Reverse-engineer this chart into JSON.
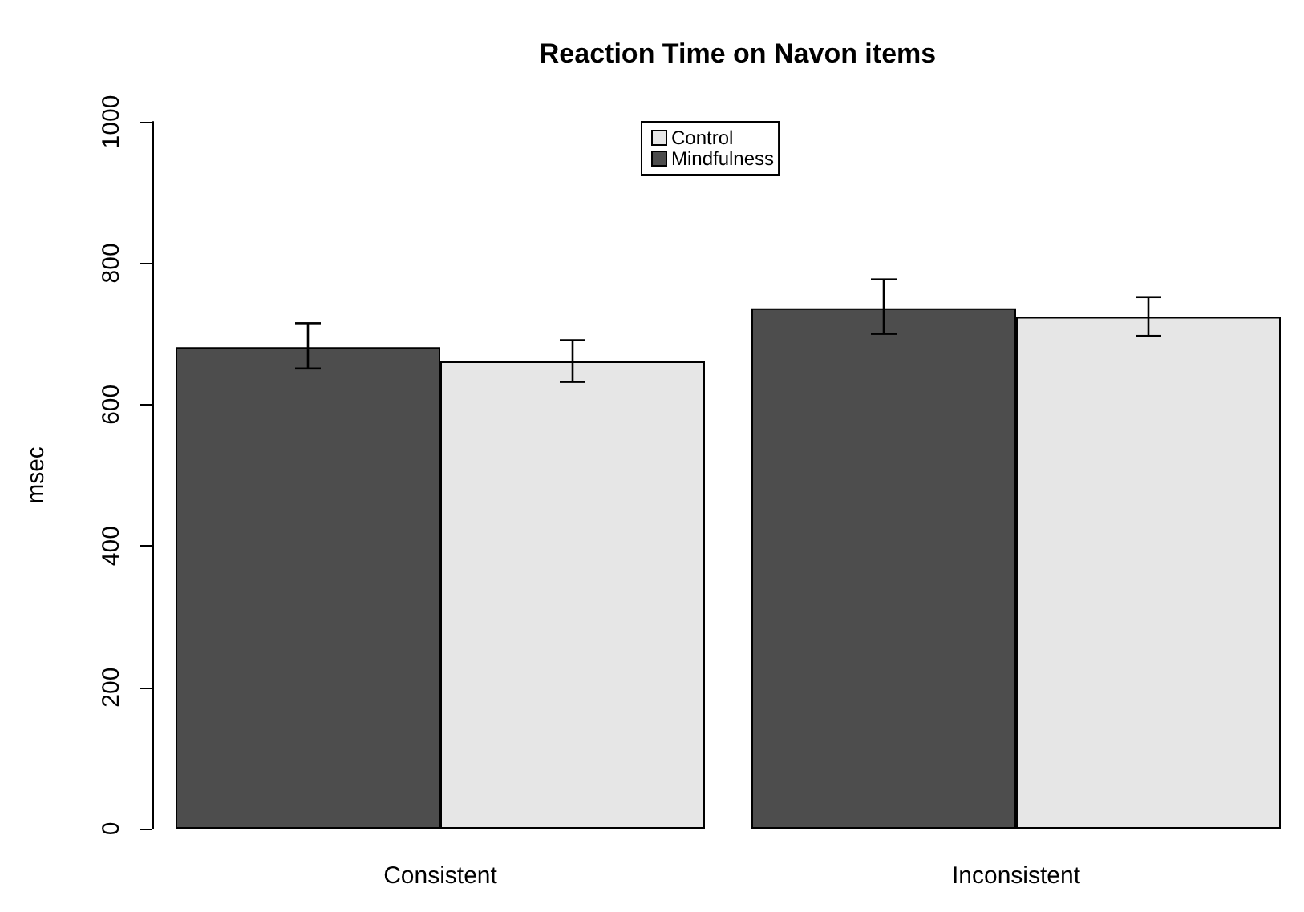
{
  "chart_data": {
    "type": "bar",
    "title": "Reaction Time on Navon items",
    "ylabel": "msec",
    "categories": [
      "Consistent",
      "Inconsistent"
    ],
    "series": [
      {
        "name": "Mindfulness",
        "color": "#4d4d4d",
        "values": [
          681,
          736
        ],
        "errors": [
          [
            651,
            715
          ],
          [
            700,
            777
          ]
        ]
      },
      {
        "name": "Control",
        "color": "#e6e6e6",
        "values": [
          661,
          724
        ],
        "errors": [
          [
            632,
            691
          ],
          [
            697,
            752
          ]
        ]
      }
    ],
    "ylim": [
      0,
      1000
    ],
    "yticks": [
      0,
      200,
      400,
      600,
      800,
      1000
    ],
    "grid": false,
    "legend": "top"
  }
}
